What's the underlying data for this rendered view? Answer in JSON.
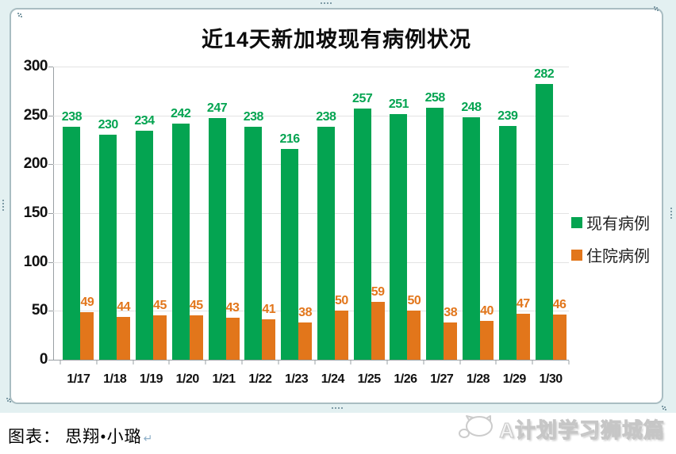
{
  "chart_data": {
    "type": "bar",
    "title": "近14天新加坡现有病例状况",
    "categories": [
      "1/17",
      "1/18",
      "1/19",
      "1/20",
      "1/21",
      "1/22",
      "1/23",
      "1/24",
      "1/25",
      "1/26",
      "1/27",
      "1/28",
      "1/29",
      "1/30"
    ],
    "series": [
      {
        "name": "现有病例",
        "color": "#04A451",
        "values": [
          238,
          230,
          234,
          242,
          247,
          238,
          216,
          238,
          257,
          251,
          258,
          248,
          239,
          282
        ]
      },
      {
        "name": "住院病例",
        "color": "#E2761B",
        "values": [
          49,
          44,
          45,
          45,
          43,
          41,
          38,
          50,
          59,
          50,
          38,
          40,
          47,
          46
        ]
      }
    ],
    "ylim": [
      0,
      300
    ],
    "yticks": [
      0,
      50,
      100,
      150,
      200,
      250,
      300
    ],
    "grid": "horizontal-only",
    "legend_position": "right-middle"
  },
  "caption": {
    "text": "图表： 思翔•小璐",
    "return_mark": "↵"
  },
  "watermark": {
    "text": "A计划学习狮城篇"
  },
  "colors": {
    "existing_cases": "#04A451",
    "hospitalized_cases": "#E2761B",
    "gridline": "#e3e3e3",
    "axis": "#9aa0a4",
    "selection_band": "#e3f0f1",
    "frame_border": "#a9bdc2"
  }
}
